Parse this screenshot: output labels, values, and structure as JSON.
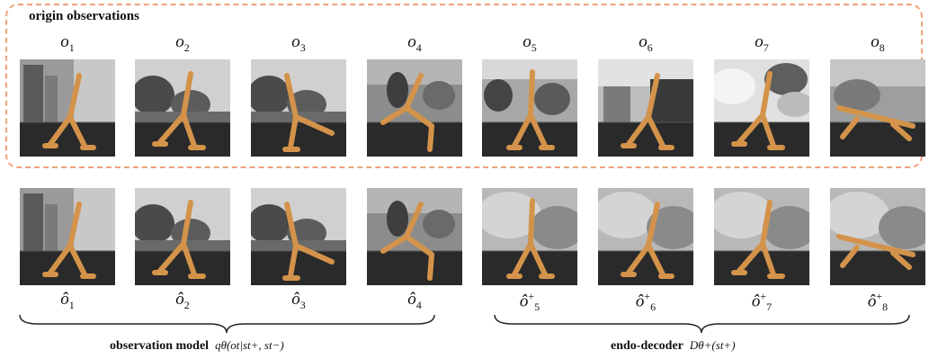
{
  "section": {
    "title": "origin observations"
  },
  "origin_labels": [
    {
      "base": "o",
      "sub": "1",
      "sup": ""
    },
    {
      "base": "o",
      "sub": "2",
      "sup": ""
    },
    {
      "base": "o",
      "sub": "3",
      "sup": ""
    },
    {
      "base": "o",
      "sub": "4",
      "sup": ""
    },
    {
      "base": "o",
      "sub": "5",
      "sup": ""
    },
    {
      "base": "o",
      "sub": "6",
      "sup": ""
    },
    {
      "base": "o",
      "sub": "7",
      "sup": ""
    },
    {
      "base": "o",
      "sub": "8",
      "sup": ""
    }
  ],
  "recon_labels": [
    {
      "base": "ô",
      "sub": "1",
      "sup": ""
    },
    {
      "base": "ô",
      "sub": "2",
      "sup": ""
    },
    {
      "base": "ô",
      "sub": "3",
      "sup": ""
    },
    {
      "base": "ô",
      "sub": "4",
      "sup": ""
    },
    {
      "base": "ô",
      "sub": "5",
      "sup": "+"
    },
    {
      "base": "ô",
      "sub": "6",
      "sup": "+"
    },
    {
      "base": "ô",
      "sub": "7",
      "sup": "+"
    },
    {
      "base": "ô",
      "sub": "8",
      "sup": "+"
    }
  ],
  "captions": {
    "left_bold": "observation model",
    "left_formula": "qθ(ot|st+, st−)",
    "right_bold": "endo-decoder",
    "right_formula": "Dθ+(st+)"
  },
  "colors": {
    "dash_border": "#f0a27a",
    "walker": "#d4934a",
    "floor": "#2a2a2a"
  },
  "frames_top": [
    {
      "pose": "walk-a",
      "bg": "buildings"
    },
    {
      "pose": "walk-b",
      "bg": "trees"
    },
    {
      "pose": "kick",
      "bg": "trees"
    },
    {
      "pose": "lunge",
      "bg": "people"
    },
    {
      "pose": "walk-c",
      "bg": "crowd"
    },
    {
      "pose": "walk-a",
      "bg": "car"
    },
    {
      "pose": "walk-b",
      "bg": "blur"
    },
    {
      "pose": "lie",
      "bg": "plain"
    }
  ],
  "frames_bottom": [
    {
      "pose": "walk-a",
      "bg": "buildings"
    },
    {
      "pose": "walk-b",
      "bg": "trees"
    },
    {
      "pose": "kick",
      "bg": "trees"
    },
    {
      "pose": "lunge",
      "bg": "people"
    },
    {
      "pose": "walk-c",
      "bg": "smooth"
    },
    {
      "pose": "walk-a",
      "bg": "smooth"
    },
    {
      "pose": "walk-b",
      "bg": "smooth"
    },
    {
      "pose": "lie",
      "bg": "smooth"
    }
  ]
}
